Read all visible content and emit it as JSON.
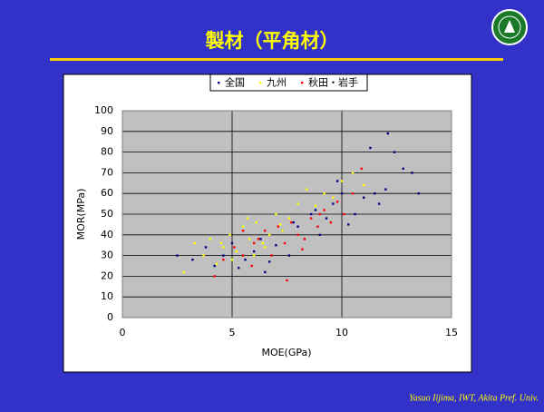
{
  "header": {
    "title": "製材（平角材）"
  },
  "chart_data": {
    "type": "scatter",
    "xlabel": "MOE(GPa)",
    "ylabel": "MOR(MPa)",
    "xlim": [
      0,
      15
    ],
    "xticks": [
      0,
      5,
      10,
      15
    ],
    "ylim": [
      0,
      100
    ],
    "yticks": [
      0,
      10,
      20,
      30,
      40,
      50,
      60,
      70,
      80,
      90,
      100
    ],
    "grid": true,
    "legend": "top",
    "series": [
      {
        "name": "全国",
        "color": "#000080",
        "x": [
          2.5,
          3.2,
          3.8,
          4.2,
          4.6,
          5.0,
          5.3,
          5.6,
          6.0,
          6.3,
          6.7,
          7.0,
          7.3,
          7.6,
          8.0,
          8.3,
          8.6,
          9.0,
          9.3,
          9.6,
          10.0,
          10.3,
          10.6,
          11.0,
          11.3,
          11.7,
          12.0,
          12.4,
          12.8,
          13.2,
          13.5,
          9.8,
          8.8,
          7.8,
          6.5,
          11.5,
          12.1
        ],
        "values": [
          30,
          28,
          34,
          25,
          30,
          36,
          24,
          28,
          32,
          38,
          27,
          35,
          42,
          30,
          44,
          38,
          50,
          40,
          48,
          55,
          60,
          45,
          50,
          58,
          82,
          55,
          62,
          80,
          72,
          70,
          60,
          66,
          52,
          46,
          22,
          60,
          89
        ]
      },
      {
        "name": "九州",
        "color": "#ffff00",
        "x": [
          2.8,
          3.3,
          3.7,
          4.0,
          4.3,
          4.6,
          4.9,
          5.2,
          5.5,
          5.8,
          6.1,
          6.4,
          6.7,
          7.0,
          7.3,
          7.6,
          8.0,
          8.4,
          8.8,
          9.2,
          9.6,
          10.0,
          10.5,
          11.0,
          5.0,
          6.0,
          4.5,
          5.7,
          6.5,
          7.2
        ],
        "values": [
          22,
          36,
          30,
          38,
          26,
          34,
          40,
          32,
          44,
          38,
          46,
          36,
          40,
          50,
          42,
          48,
          55,
          62,
          54,
          60,
          58,
          66,
          70,
          64,
          28,
          30,
          36,
          48,
          34,
          45
        ]
      },
      {
        "name": "秋田・岩手",
        "color": "#ff0000",
        "x": [
          4.2,
          4.6,
          5.1,
          5.5,
          5.9,
          6.2,
          6.5,
          6.8,
          7.1,
          7.4,
          7.7,
          8.0,
          8.3,
          8.6,
          8.9,
          9.2,
          9.5,
          9.8,
          10.1,
          10.5,
          10.9,
          6.0,
          7.5,
          8.2,
          9.0,
          5.5
        ],
        "values": [
          20,
          28,
          34,
          30,
          25,
          38,
          42,
          30,
          44,
          36,
          46,
          40,
          38,
          48,
          44,
          52,
          46,
          56,
          50,
          60,
          72,
          36,
          18,
          33,
          50,
          42
        ]
      }
    ]
  },
  "footer": {
    "credit": "Yasuo Iijima, IWT, Akita Pref.  Univ."
  }
}
